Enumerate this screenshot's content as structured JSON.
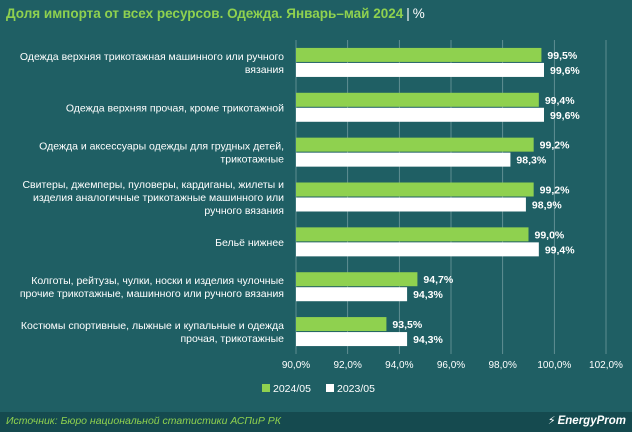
{
  "header": {
    "title": "Доля импорта от всех ресурсов. Одежда. Январь–май 2024",
    "separator": "|",
    "unit": "%"
  },
  "footer": {
    "source": "Источник: Бюро национальной статистики АСПиР РК",
    "brand": "EnergyProm",
    "brand_icon": "lightning-bolt-icon"
  },
  "colors": {
    "background": "#1f5f64",
    "series_2024": "#8fd14f",
    "series_2023": "#ffffff",
    "grid": "#6f9a9d"
  },
  "chart_data": {
    "type": "bar",
    "orientation": "horizontal",
    "title": "Доля импорта от всех ресурсов. Одежда. Январь–май 2024",
    "categories": [
      [
        "Одежда верхняя трикотажная машинного или ручного",
        "вязания"
      ],
      [
        "Одежда верхняя прочая, кроме трикотажной"
      ],
      [
        "Одежда и аксессуары одежды для грудных детей,",
        "трикотажные"
      ],
      [
        "Свитеры, джемперы, пуловеры, кардиганы, жилеты и",
        "изделия аналогичные трикотажные машинного или",
        "ручного вязания"
      ],
      [
        "Бельё нижнее"
      ],
      [
        "Колготы, рейтузы, чулки, носки и изделия чулочные",
        "прочие трикотажные, машинного или ручного вязания"
      ],
      [
        "Костюмы спортивные, лыжные и купальные и одежда",
        "прочая, трикотажные"
      ]
    ],
    "series": [
      {
        "name": "2024/05",
        "values": [
          99.5,
          99.4,
          99.2,
          99.2,
          99.0,
          94.7,
          93.5
        ],
        "labels": [
          "99,5%",
          "99,4%",
          "99,2%",
          "99,2%",
          "99,0%",
          "94,7%",
          "93,5%"
        ]
      },
      {
        "name": "2023/05",
        "values": [
          99.6,
          99.6,
          98.3,
          98.9,
          99.4,
          94.3,
          94.3
        ],
        "labels": [
          "99,6%",
          "99,6%",
          "98,3%",
          "98,9%",
          "99,4%",
          "94,3%",
          "94,3%"
        ]
      }
    ],
    "xlim": [
      90,
      102
    ],
    "xticks": [
      90,
      92,
      94,
      96,
      98,
      100,
      102
    ],
    "xtick_labels": [
      "90,0%",
      "92,0%",
      "94,0%",
      "96,0%",
      "98,0%",
      "100,0%",
      "102,0%"
    ],
    "grid": true,
    "legend": "bottom-center"
  }
}
